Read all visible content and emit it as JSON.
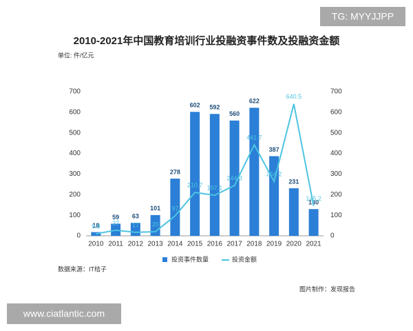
{
  "chart_data": {
    "type": "bar",
    "title": "2010-2021年中国教育培训行业投融资事件数及投融资金额",
    "unit": "单位: 件/亿元",
    "source": "数据来源：IT桔子",
    "credit": "图片制作：发现报告",
    "categories": [
      "2010",
      "2011",
      "2012",
      "2013",
      "2014",
      "2015",
      "2016",
      "2017",
      "2018",
      "2019",
      "2020",
      "2021"
    ],
    "series": [
      {
        "name": "投资事件数量",
        "type": "bar",
        "color": "#2b7fd6",
        "values": [
          18,
          59,
          63,
          101,
          278,
          602,
          592,
          560,
          622,
          387,
          231,
          130
        ]
      },
      {
        "name": "投资金额",
        "type": "line",
        "axis": "y2",
        "color": "#4cc4e2",
        "values": [
          9.8,
          27,
          17,
          20,
          97,
          210.7,
          197.1,
          244.3,
          441.7,
          264.2,
          640.5,
          145.2
        ]
      }
    ],
    "ylim": [
      0,
      700
    ],
    "yticks": [
      0,
      100,
      200,
      300,
      400,
      500,
      600,
      700
    ],
    "y2lim": [
      0,
      700
    ],
    "y2ticks": [
      0,
      100,
      200,
      300,
      400,
      500,
      600,
      700
    ]
  },
  "watermarks": [
    "TG: MYYJJPP",
    "www.ciatlantic.com"
  ]
}
